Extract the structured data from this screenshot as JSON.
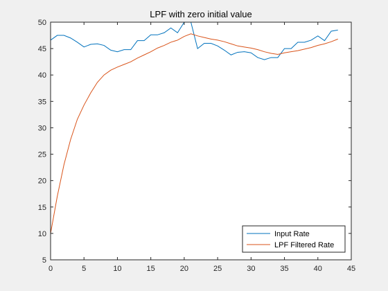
{
  "chart_data": {
    "type": "line",
    "title": "LPF with zero initial value",
    "xlabel": "",
    "ylabel": "",
    "xlim": [
      0,
      45
    ],
    "ylim": [
      5,
      50
    ],
    "xticks": [
      0,
      5,
      10,
      15,
      20,
      25,
      30,
      35,
      40,
      45
    ],
    "yticks": [
      5,
      10,
      15,
      20,
      25,
      30,
      35,
      40,
      45,
      50
    ],
    "grid": false,
    "legend_position": "bottom-right",
    "x": [
      0,
      1,
      2,
      3,
      4,
      5,
      6,
      7,
      8,
      9,
      10,
      11,
      12,
      13,
      14,
      15,
      16,
      17,
      18,
      19,
      20,
      21,
      22,
      23,
      24,
      25,
      26,
      27,
      28,
      29,
      30,
      31,
      32,
      33,
      34,
      35,
      36,
      37,
      38,
      39,
      40,
      41,
      42,
      43
    ],
    "series": [
      {
        "name": "Input Rate",
        "color": "#0072bd",
        "values": [
          46.6,
          47.5,
          47.5,
          47.0,
          46.2,
          45.3,
          45.8,
          45.9,
          45.6,
          44.7,
          44.4,
          44.8,
          44.8,
          46.5,
          46.5,
          47.6,
          47.6,
          48.0,
          48.9,
          48.0,
          50.0,
          50.0,
          45.0,
          46.0,
          46.0,
          45.5,
          44.7,
          43.8,
          44.3,
          44.4,
          44.2,
          43.3,
          42.9,
          43.3,
          43.3,
          45.0,
          45.0,
          46.2,
          46.2,
          46.6,
          47.4,
          46.5,
          48.3,
          48.5
        ]
      },
      {
        "name": "LPF Filtered Rate",
        "color": "#d95319",
        "values": [
          10.0,
          17.0,
          23.0,
          27.8,
          31.6,
          34.3,
          36.6,
          38.6,
          40.0,
          40.9,
          41.5,
          42.0,
          42.5,
          43.2,
          43.8,
          44.4,
          45.1,
          45.6,
          46.2,
          46.6,
          47.3,
          47.8,
          47.4,
          47.1,
          46.8,
          46.6,
          46.3,
          45.9,
          45.5,
          45.3,
          45.1,
          44.8,
          44.4,
          44.1,
          43.9,
          44.2,
          44.4,
          44.6,
          44.9,
          45.2,
          45.6,
          45.9,
          46.3,
          46.8
        ]
      }
    ]
  }
}
